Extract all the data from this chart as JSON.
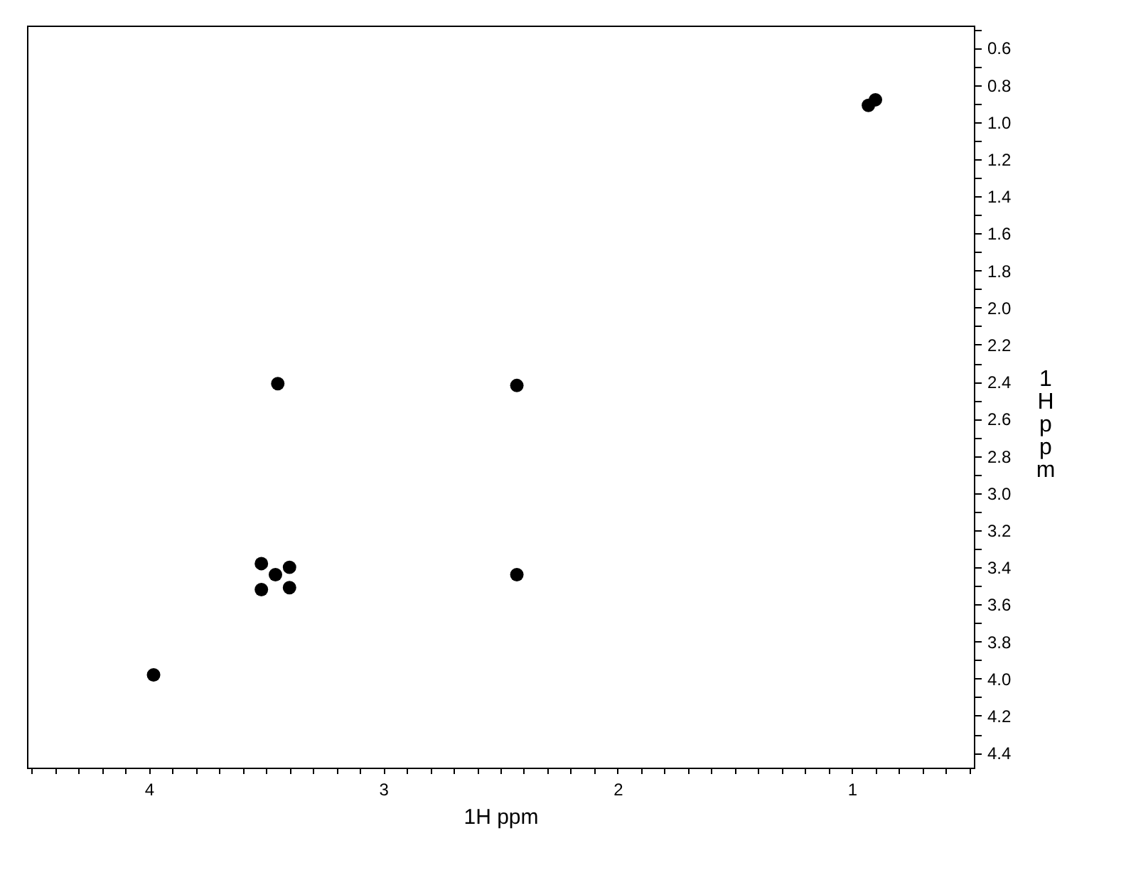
{
  "chart_data": {
    "type": "scatter",
    "xlabel": "1H ppm",
    "ylabel": "1H ppm",
    "xlim": [
      4.52,
      0.48
    ],
    "ylim": [
      4.48,
      0.48
    ],
    "xticks": [
      {
        "value": 4.5,
        "label": null
      },
      {
        "value": 4.4,
        "label": null
      },
      {
        "value": 4.3,
        "label": null
      },
      {
        "value": 4.2,
        "label": null
      },
      {
        "value": 4.1,
        "label": null
      },
      4,
      {
        "value": 3.9,
        "label": null
      },
      {
        "value": 3.8,
        "label": null
      },
      {
        "value": 3.7,
        "label": null
      },
      {
        "value": 3.6,
        "label": null
      },
      {
        "value": 3.5,
        "label": null
      },
      {
        "value": 3.4,
        "label": null
      },
      {
        "value": 3.3,
        "label": null
      },
      {
        "value": 3.2,
        "label": null
      },
      {
        "value": 3.1,
        "label": null
      },
      3,
      {
        "value": 2.9,
        "label": null
      },
      {
        "value": 2.8,
        "label": null
      },
      {
        "value": 2.7,
        "label": null
      },
      {
        "value": 2.6,
        "label": null
      },
      {
        "value": 2.5,
        "label": null
      },
      {
        "value": 2.4,
        "label": null
      },
      {
        "value": 2.3,
        "label": null
      },
      {
        "value": 2.2,
        "label": null
      },
      {
        "value": 2.1,
        "label": null
      },
      2,
      {
        "value": 1.9,
        "label": null
      },
      {
        "value": 1.8,
        "label": null
      },
      {
        "value": 1.7,
        "label": null
      },
      {
        "value": 1.6,
        "label": null
      },
      {
        "value": 1.5,
        "label": null
      },
      {
        "value": 1.4,
        "label": null
      },
      {
        "value": 1.3,
        "label": null
      },
      {
        "value": 1.2,
        "label": null
      },
      {
        "value": 1.1,
        "label": null
      },
      1,
      {
        "value": 0.9,
        "label": null
      },
      {
        "value": 0.8,
        "label": null
      },
      {
        "value": 0.7,
        "label": null
      },
      {
        "value": 0.6,
        "label": null
      },
      {
        "value": 0.5,
        "label": null
      }
    ],
    "yticks": [
      {
        "value": 0.5,
        "label": null
      },
      0.6,
      {
        "value": 0.7,
        "label": null
      },
      0.8,
      {
        "value": 0.9,
        "label": null
      },
      {
        "value": 1,
        "label": "1.0"
      },
      {
        "value": 1.1,
        "label": null
      },
      1.2,
      {
        "value": 1.3,
        "label": null
      },
      1.4,
      {
        "value": 1.5,
        "label": null
      },
      1.6,
      {
        "value": 1.7,
        "label": null
      },
      1.8,
      {
        "value": 1.9,
        "label": null
      },
      {
        "value": 2,
        "label": "2.0"
      },
      {
        "value": 2.1,
        "label": null
      },
      2.2,
      {
        "value": 2.3,
        "label": null
      },
      2.4,
      {
        "value": 2.5,
        "label": null
      },
      2.6,
      {
        "value": 2.7,
        "label": null
      },
      2.8,
      {
        "value": 2.9,
        "label": null
      },
      {
        "value": 3,
        "label": "3.0"
      },
      {
        "value": 3.1,
        "label": null
      },
      3.2,
      {
        "value": 3.3,
        "label": null
      },
      3.4,
      {
        "value": 3.5,
        "label": null
      },
      3.6,
      {
        "value": 3.7,
        "label": null
      },
      3.8,
      {
        "value": 3.9,
        "label": null
      },
      {
        "value": 4,
        "label": "4.0"
      },
      {
        "value": 4.1,
        "label": null
      },
      4.2,
      {
        "value": 4.3,
        "label": null
      },
      4.4
    ],
    "series": [
      {
        "color": "#000000",
        "x": [
          3.98,
          3.52,
          3.52,
          3.46,
          3.4,
          3.4,
          3.45,
          2.43,
          2.43,
          0.93,
          0.9
        ],
        "values": [
          3.98,
          3.38,
          3.52,
          3.44,
          3.4,
          3.51,
          2.41,
          2.42,
          3.44,
          0.91,
          0.88
        ]
      }
    ],
    "marker": "circle",
    "grid": false
  }
}
